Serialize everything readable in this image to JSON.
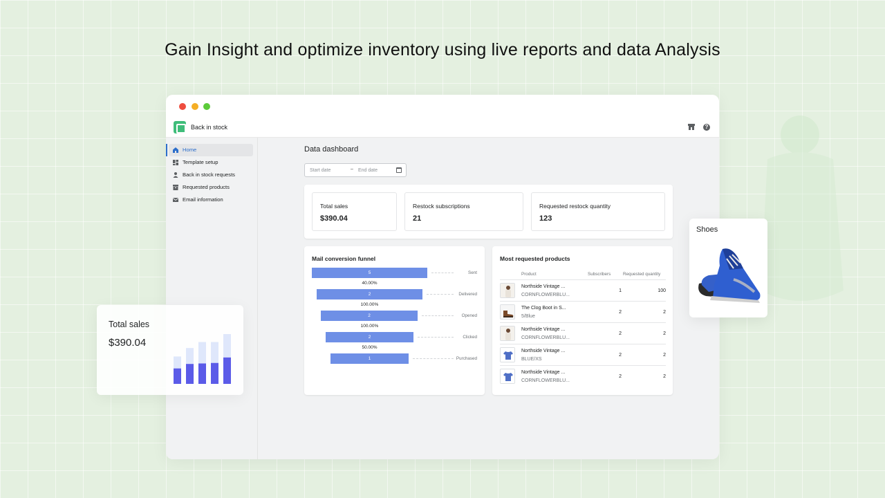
{
  "headline": "Gain Insight and optimize inventory using live reports and data Analysis",
  "app": {
    "name": "Back in stock",
    "logo_icon": "bell-icon"
  },
  "sidebar": {
    "items": [
      {
        "label": "Home",
        "icon": "home-icon",
        "active": true
      },
      {
        "label": "Template setup",
        "icon": "template-icon",
        "active": false
      },
      {
        "label": "Back in stock requests",
        "icon": "person-icon",
        "active": false
      },
      {
        "label": "Requested products",
        "icon": "box-icon",
        "active": false
      },
      {
        "label": "Email information",
        "icon": "mail-icon",
        "active": false
      }
    ]
  },
  "dashboard": {
    "title": "Data dashboard",
    "date_range": {
      "start_placeholder": "Start date",
      "separator": "–",
      "end_placeholder": "End date"
    },
    "stats": [
      {
        "label": "Total sales",
        "value": "$390.04"
      },
      {
        "label": "Restock subscriptions",
        "value": "21"
      },
      {
        "label": "Requested restock quantity",
        "value": "123"
      }
    ]
  },
  "funnel": {
    "title": "Mail conversion funnel",
    "stages": [
      {
        "value": "5",
        "label": "Sent"
      },
      {
        "value": "2",
        "label": "Delivered"
      },
      {
        "value": "2",
        "label": "Opened"
      },
      {
        "value": "2",
        "label": "Clicked"
      },
      {
        "value": "1",
        "label": "Purchased"
      }
    ],
    "rates": [
      "40.00%",
      "100.00%",
      "100.00%",
      "50.00%"
    ],
    "bar_color": "#6e8fe6"
  },
  "products": {
    "title": "Most requested products",
    "headers": {
      "product": "Product",
      "subscribers": "Subscribers",
      "quantity": "Requested quantity"
    },
    "rows": [
      {
        "name": "Northside Vintage ...",
        "variant": "CORNFLOWERBLU...",
        "subscribers": "1",
        "quantity": "100",
        "thumb": "person"
      },
      {
        "name": "The Clog Boot in S...",
        "variant": "5/Blue",
        "subscribers": "2",
        "quantity": "2",
        "thumb": "boot"
      },
      {
        "name": "Northside Vintage ...",
        "variant": "CORNFLOWERBLU...",
        "subscribers": "2",
        "quantity": "2",
        "thumb": "person"
      },
      {
        "name": "Northside Vintage ...",
        "variant": "BLUE/XS",
        "subscribers": "2",
        "quantity": "2",
        "thumb": "shirt"
      },
      {
        "name": "Northside Vintage ...",
        "variant": "CORNFLOWERBLU...",
        "subscribers": "2",
        "quantity": "2",
        "thumb": "shirt"
      }
    ]
  },
  "floating_sales": {
    "label": "Total sales",
    "value": "$390.04",
    "bars": [
      {
        "back": 0.55,
        "front": 0.31
      },
      {
        "back": 0.72,
        "front": 0.4
      },
      {
        "back": 0.84,
        "front": 0.41
      },
      {
        "back": 0.84,
        "front": 0.42
      },
      {
        "back": 1.0,
        "front": 0.53
      }
    ],
    "colors": {
      "front": "#5b5be8",
      "back": "#dfe7fb"
    }
  },
  "floating_product": {
    "label": "Shoes"
  },
  "colors": {
    "accent": "#2c6ecb",
    "app_green": "#3fbd7a"
  }
}
